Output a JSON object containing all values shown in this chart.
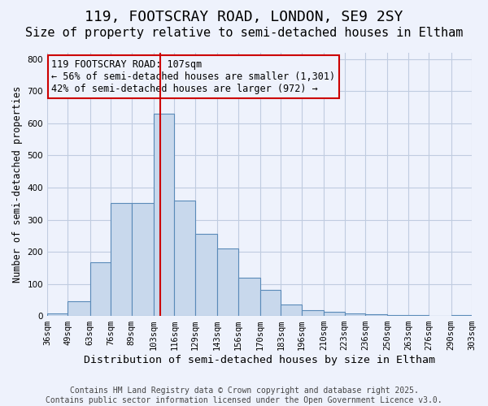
{
  "title_line1": "119, FOOTSCRAY ROAD, LONDON, SE9 2SY",
  "title_line2": "Size of property relative to semi-detached houses in Eltham",
  "xlabel": "Distribution of semi-detached houses by size in Eltham",
  "ylabel": "Number of semi-detached properties",
  "footer_line1": "Contains HM Land Registry data © Crown copyright and database right 2025.",
  "footer_line2": "Contains public sector information licensed under the Open Government Licence v3.0.",
  "annotation_line1": "119 FOOTSCRAY ROAD: 107sqm",
  "annotation_line2": "← 56% of semi-detached houses are smaller (1,301)",
  "annotation_line3": "42% of semi-detached houses are larger (972) →",
  "property_size": 107,
  "bar_edges": [
    36,
    49,
    63,
    76,
    89,
    103,
    116,
    129,
    143,
    156,
    170,
    183,
    196,
    210,
    223,
    236,
    250,
    263,
    276,
    290,
    303
  ],
  "bar_heights": [
    8,
    47,
    168,
    352,
    352,
    630,
    360,
    257,
    210,
    120,
    80,
    35,
    18,
    12,
    8,
    5,
    2,
    4,
    1,
    4
  ],
  "tick_labels": [
    "36sqm",
    "49sqm",
    "63sqm",
    "76sqm",
    "89sqm",
    "103sqm",
    "116sqm",
    "129sqm",
    "143sqm",
    "156sqm",
    "170sqm",
    "183sqm",
    "196sqm",
    "210sqm",
    "223sqm",
    "236sqm",
    "250sqm",
    "263sqm",
    "276sqm",
    "290sqm",
    "303sqm"
  ],
  "bar_color": "#c8d8ec",
  "bar_edge_color": "#5a8ab8",
  "vline_color": "#cc0000",
  "vline_x": 107,
  "ylim": [
    0,
    820
  ],
  "yticks": [
    0,
    100,
    200,
    300,
    400,
    500,
    600,
    700,
    800
  ],
  "grid_color": "#c0cce0",
  "background_color": "#eef2fc",
  "annotation_box_edge_color": "#cc0000",
  "annotation_fontsize": 8.5,
  "title1_fontsize": 13,
  "title2_fontsize": 11,
  "xlabel_fontsize": 9.5,
  "ylabel_fontsize": 8.5,
  "tick_fontsize": 7.5,
  "footer_fontsize": 7
}
